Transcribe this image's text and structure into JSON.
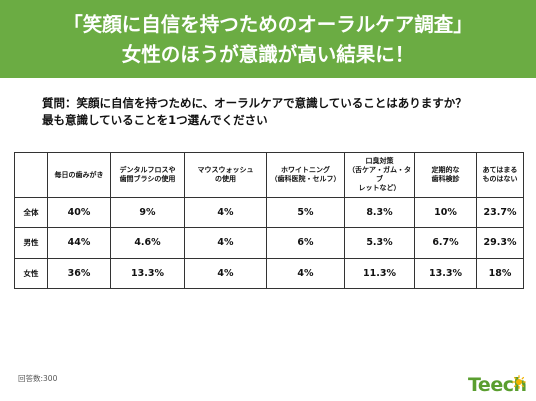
{
  "header": {
    "line1": "「笑顔に自信を持つためのオーラルケア調査」",
    "line2": "女性のほうが意識が高い結果に！"
  },
  "question": {
    "line1": "質問：笑顔に自信を持つために、オーラルケアで意識していることはありますか？",
    "line2": "最も意識していることを1つ選んでください"
  },
  "table": {
    "columns": [
      [
        "毎日の歯みがき"
      ],
      [
        "デンタルフロスや",
        "歯間ブラシの使用"
      ],
      [
        "マウスウォッシュ",
        "の使用"
      ],
      [
        "ホワイトニング",
        "（歯科医院・セルフ）"
      ],
      [
        "口臭対策",
        "（舌ケア・ガム・タブ",
        "レットなど）"
      ],
      [
        "定期的な",
        "歯科検診"
      ],
      [
        "あてはまる",
        "ものはない"
      ]
    ],
    "rows": [
      {
        "label": "全体",
        "values": [
          "40%",
          "9%",
          "4%",
          "5%",
          "8.3%",
          "10%",
          "23.7%"
        ]
      },
      {
        "label": "男性",
        "values": [
          "44%",
          "4.6%",
          "4%",
          "6%",
          "5.3%",
          "6.7%",
          "29.3%"
        ]
      },
      {
        "label": "女性",
        "values": [
          "36%",
          "13.3%",
          "4%",
          "4%",
          "11.3%",
          "13.3%",
          "18%"
        ]
      }
    ]
  },
  "footer": {
    "respondents": "回答数:300",
    "logo_text": "Teech"
  },
  "colors": {
    "banner": "#6bac43",
    "logo": "#5a9e2f",
    "logo_sun": "#f2b400"
  }
}
